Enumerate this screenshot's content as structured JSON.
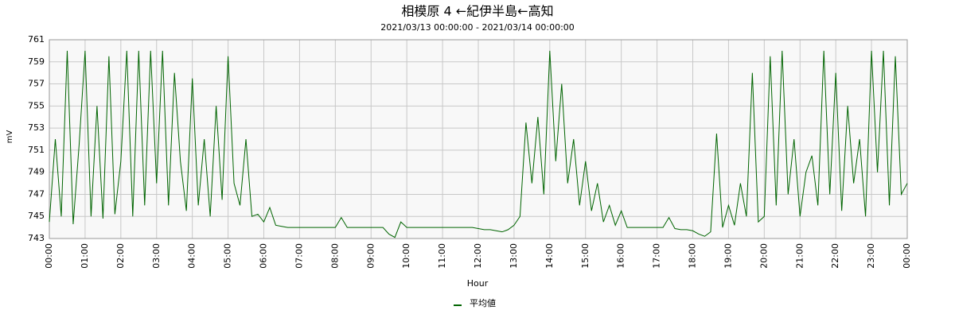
{
  "chart_data": {
    "type": "line",
    "title": "相模原  4  ←紀伊半島←高知",
    "subtitle": "2021/03/13 00:00:00 - 2021/03/14 00:00:00",
    "x_label": "Hour",
    "y_label": "mV",
    "xlim": [
      0,
      1440
    ],
    "ylim": [
      743,
      761
    ],
    "xticks": [
      {
        "value": 0,
        "label": "00:00"
      },
      {
        "value": 60,
        "label": "01:00"
      },
      {
        "value": 120,
        "label": "02:00"
      },
      {
        "value": 180,
        "label": "03:00"
      },
      {
        "value": 240,
        "label": "04:00"
      },
      {
        "value": 300,
        "label": "05:00"
      },
      {
        "value": 360,
        "label": "06:00"
      },
      {
        "value": 420,
        "label": "07:00"
      },
      {
        "value": 480,
        "label": "08:00"
      },
      {
        "value": 540,
        "label": "09:00"
      },
      {
        "value": 600,
        "label": "10:00"
      },
      {
        "value": 660,
        "label": "11:00"
      },
      {
        "value": 720,
        "label": "12:00"
      },
      {
        "value": 780,
        "label": "13:00"
      },
      {
        "value": 840,
        "label": "14:00"
      },
      {
        "value": 900,
        "label": "15:00"
      },
      {
        "value": 960,
        "label": "16:00"
      },
      {
        "value": 1020,
        "label": "17:00"
      },
      {
        "value": 1080,
        "label": "18:00"
      },
      {
        "value": 1140,
        "label": "19:00"
      },
      {
        "value": 1200,
        "label": "20:00"
      },
      {
        "value": 1260,
        "label": "21:00"
      },
      {
        "value": 1320,
        "label": "22:00"
      },
      {
        "value": 1380,
        "label": "23:00"
      },
      {
        "value": 1440,
        "label": "00:00"
      }
    ],
    "yticks": [
      743,
      745,
      747,
      749,
      751,
      753,
      755,
      757,
      759,
      761
    ],
    "grid": true,
    "x": [
      0,
      10,
      20,
      30,
      40,
      50,
      60,
      70,
      80,
      90,
      100,
      110,
      120,
      130,
      140,
      150,
      160,
      170,
      180,
      190,
      200,
      210,
      220,
      230,
      240,
      250,
      260,
      270,
      280,
      290,
      300,
      310,
      320,
      330,
      340,
      350,
      360,
      370,
      380,
      390,
      400,
      410,
      420,
      430,
      440,
      450,
      460,
      470,
      480,
      490,
      500,
      510,
      520,
      530,
      540,
      550,
      560,
      570,
      580,
      590,
      600,
      610,
      620,
      630,
      640,
      650,
      660,
      670,
      680,
      690,
      700,
      710,
      720,
      730,
      740,
      750,
      760,
      770,
      780,
      790,
      800,
      810,
      820,
      830,
      840,
      850,
      860,
      870,
      880,
      890,
      900,
      910,
      920,
      930,
      940,
      950,
      960,
      970,
      980,
      990,
      1000,
      1010,
      1020,
      1030,
      1040,
      1050,
      1060,
      1070,
      1080,
      1090,
      1100,
      1110,
      1120,
      1130,
      1140,
      1150,
      1160,
      1170,
      1180,
      1190,
      1200,
      1210,
      1220,
      1230,
      1240,
      1250,
      1260,
      1270,
      1280,
      1290,
      1300,
      1310,
      1320,
      1330,
      1340,
      1350,
      1360,
      1370,
      1380,
      1390,
      1400,
      1410,
      1420,
      1430,
      1440
    ],
    "series": [
      {
        "name": "平均値",
        "color": "#006400",
        "values": [
          744.5,
          752,
          745,
          760,
          744.3,
          751.5,
          760,
          745,
          755,
          744.8,
          759.5,
          745.2,
          750,
          760,
          745,
          760,
          746,
          760,
          748,
          760,
          746,
          758,
          750,
          745.5,
          757.5,
          746,
          752,
          745,
          755,
          746.5,
          759.5,
          748,
          746,
          752,
          745,
          745.2,
          744.5,
          745.8,
          744.2,
          744.1,
          744,
          744,
          744,
          744,
          744,
          744,
          744,
          744,
          744,
          744.9,
          744,
          744,
          744,
          744,
          744,
          744,
          744,
          743.4,
          743.1,
          744.5,
          744,
          744,
          744,
          744,
          744,
          744,
          744,
          744,
          744,
          744,
          744,
          744,
          743.9,
          743.8,
          743.8,
          743.7,
          743.6,
          743.8,
          744.2,
          745,
          753.5,
          748,
          754,
          747,
          760,
          750,
          757,
          748,
          752,
          746,
          750,
          745.5,
          748,
          744.5,
          746,
          744.2,
          745.5,
          744,
          744,
          744,
          744,
          744,
          744,
          744,
          744.9,
          743.9,
          743.8,
          743.8,
          743.7,
          743.4,
          743.2,
          743.6,
          752.5,
          744,
          746,
          744.2,
          748,
          745,
          758,
          744.5,
          745,
          759.5,
          746,
          760,
          747,
          752,
          745,
          749,
          750.5,
          746,
          760,
          747,
          758,
          745.5,
          755,
          748,
          752,
          745,
          760,
          749,
          760,
          746,
          759.5,
          747,
          748
        ]
      }
    ]
  }
}
